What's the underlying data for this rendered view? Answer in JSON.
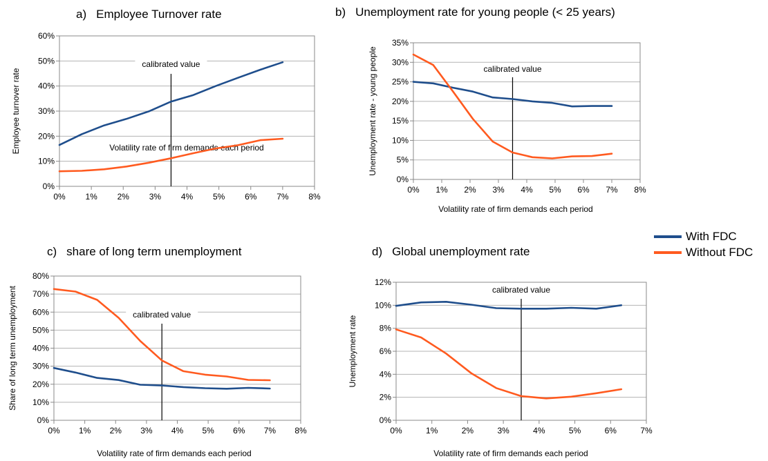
{
  "titles": {
    "a": {
      "letter": "a)",
      "text": "Employee Turnover rate"
    },
    "b": {
      "letter": "b)",
      "text": "Unemployment rate for young people (< 25 years)"
    },
    "c": {
      "letter": "c)",
      "text": "share of long term unemployment"
    },
    "d": {
      "letter": "d)",
      "text": "Global unemployment rate"
    }
  },
  "legend": [
    {
      "name": "With FDC",
      "color": "#1f4e8c"
    },
    {
      "name": "Without FDC",
      "color": "#ff5a1f"
    }
  ],
  "chart_data": [
    {
      "type": "line",
      "title": "Employee Turnover rate",
      "xlabel": "Volatility rate of firm demands each period",
      "ylabel": "Employee turnover rate",
      "xlim": [
        0,
        8
      ],
      "ylim": [
        0,
        60
      ],
      "xstep": 1,
      "ystep": 10,
      "xticks": [
        "0%",
        "1%",
        "2%",
        "3%",
        "4%",
        "5%",
        "6%",
        "7%",
        "8%"
      ],
      "yticks": [
        "0%",
        "10%",
        "20%",
        "30%",
        "40%",
        "50%",
        "60%"
      ],
      "calibrated": {
        "x": 3.5,
        "label": "calibrated value"
      },
      "series": [
        {
          "name": "With FDC",
          "color": "#1f4e8c",
          "x": [
            0,
            0.7,
            1.4,
            2.1,
            2.8,
            3.5,
            4.2,
            4.9,
            5.6,
            6.3,
            7.0
          ],
          "y": [
            16.5,
            20.8,
            24.3,
            26.9,
            29.9,
            33.8,
            36.4,
            40.0,
            43.3,
            46.5,
            49.5
          ]
        },
        {
          "name": "Without FDC",
          "color": "#ff5a1f",
          "x": [
            0,
            0.7,
            1.4,
            2.1,
            2.8,
            3.5,
            4.2,
            4.9,
            5.6,
            6.3,
            7.0
          ],
          "y": [
            6.0,
            6.2,
            6.8,
            7.9,
            9.4,
            11.2,
            13.2,
            15.1,
            16.4,
            18.4,
            19.0
          ]
        }
      ]
    },
    {
      "type": "line",
      "title": "Unemployment rate for young people (< 25 years)",
      "xlabel": "Volatility rate of firm demands each period",
      "ylabel": "Unemployment rate - young people",
      "xlim": [
        0,
        8
      ],
      "ylim": [
        0,
        35
      ],
      "xstep": 1,
      "ystep": 5,
      "xticks": [
        "0%",
        "1%",
        "2%",
        "3%",
        "4%",
        "5%",
        "6%",
        "7%",
        "8%"
      ],
      "yticks": [
        "0%",
        "5%",
        "10%",
        "15%",
        "20%",
        "25%",
        "30%",
        "35%"
      ],
      "calibrated": {
        "x": 3.5,
        "label": "calibrated value"
      },
      "series": [
        {
          "name": "With FDC",
          "color": "#1f4e8c",
          "x": [
            0,
            0.7,
            1.4,
            2.1,
            2.8,
            3.5,
            4.2,
            4.9,
            5.6,
            6.3,
            7.0
          ],
          "y": [
            25.0,
            24.6,
            23.5,
            22.5,
            21.0,
            20.6,
            20.0,
            19.6,
            18.7,
            18.8,
            18.8
          ]
        },
        {
          "name": "Without FDC",
          "color": "#ff5a1f",
          "x": [
            0,
            0.7,
            1.4,
            2.1,
            2.8,
            3.5,
            4.2,
            4.9,
            5.6,
            6.3,
            7.0
          ],
          "y": [
            32.0,
            29.3,
            22.5,
            15.5,
            9.7,
            6.9,
            5.7,
            5.4,
            5.9,
            6.0,
            6.6
          ]
        }
      ]
    },
    {
      "type": "line",
      "title": "share of long term unemployment",
      "xlabel": "Volatility rate of firm demands each period",
      "ylabel": "Share of long term unemployment",
      "xlim": [
        0,
        8
      ],
      "ylim": [
        0,
        80
      ],
      "xstep": 1,
      "ystep": 10,
      "xticks": [
        "0%",
        "1%",
        "2%",
        "3%",
        "4%",
        "5%",
        "6%",
        "7%",
        "8%"
      ],
      "yticks": [
        "0%",
        "10%",
        "20%",
        "30%",
        "40%",
        "50%",
        "60%",
        "70%",
        "80%"
      ],
      "calibrated": {
        "x": 3.5,
        "label": "calibrated value"
      },
      "series": [
        {
          "name": "With FDC",
          "color": "#1f4e8c",
          "x": [
            0,
            0.7,
            1.4,
            2.1,
            2.8,
            3.5,
            4.2,
            4.9,
            5.6,
            6.3,
            7.0
          ],
          "y": [
            29.0,
            26.5,
            23.5,
            22.3,
            19.7,
            19.3,
            18.4,
            17.8,
            17.5,
            18.0,
            17.6
          ]
        },
        {
          "name": "Without FDC",
          "color": "#ff5a1f",
          "x": [
            0,
            0.7,
            1.4,
            2.1,
            2.8,
            3.5,
            4.2,
            4.9,
            5.6,
            6.3,
            7.0
          ],
          "y": [
            72.8,
            71.4,
            66.8,
            56.8,
            44.0,
            33.2,
            27.2,
            25.3,
            24.3,
            22.4,
            22.2
          ]
        }
      ]
    },
    {
      "type": "line",
      "title": "Global unemployment rate",
      "xlabel": "Volatility rate of firm demands each period",
      "ylabel": "Unemployment rate",
      "xlim": [
        0,
        7
      ],
      "ylim": [
        0,
        12
      ],
      "xstep": 1,
      "ystep": 2,
      "xticks": [
        "0%",
        "1%",
        "2%",
        "3%",
        "4%",
        "5%",
        "6%",
        "7%"
      ],
      "yticks": [
        "0%",
        "2%",
        "4%",
        "6%",
        "8%",
        "10%",
        "12%"
      ],
      "calibrated": {
        "x": 3.5,
        "label": "calibrated value"
      },
      "series": [
        {
          "name": "With FDC",
          "color": "#1f4e8c",
          "x": [
            0,
            0.7,
            1.4,
            2.1,
            2.8,
            3.5,
            4.2,
            4.9,
            5.6,
            6.3
          ],
          "y": [
            9.95,
            10.25,
            10.3,
            10.05,
            9.75,
            9.7,
            9.7,
            9.78,
            9.7,
            10.0
          ]
        },
        {
          "name": "Without FDC",
          "color": "#ff5a1f",
          "x": [
            0,
            0.7,
            1.4,
            2.1,
            2.8,
            3.5,
            4.2,
            4.9,
            5.6,
            6.3
          ],
          "y": [
            7.9,
            7.2,
            5.8,
            4.1,
            2.8,
            2.1,
            1.9,
            2.05,
            2.35,
            2.7
          ]
        }
      ]
    }
  ]
}
